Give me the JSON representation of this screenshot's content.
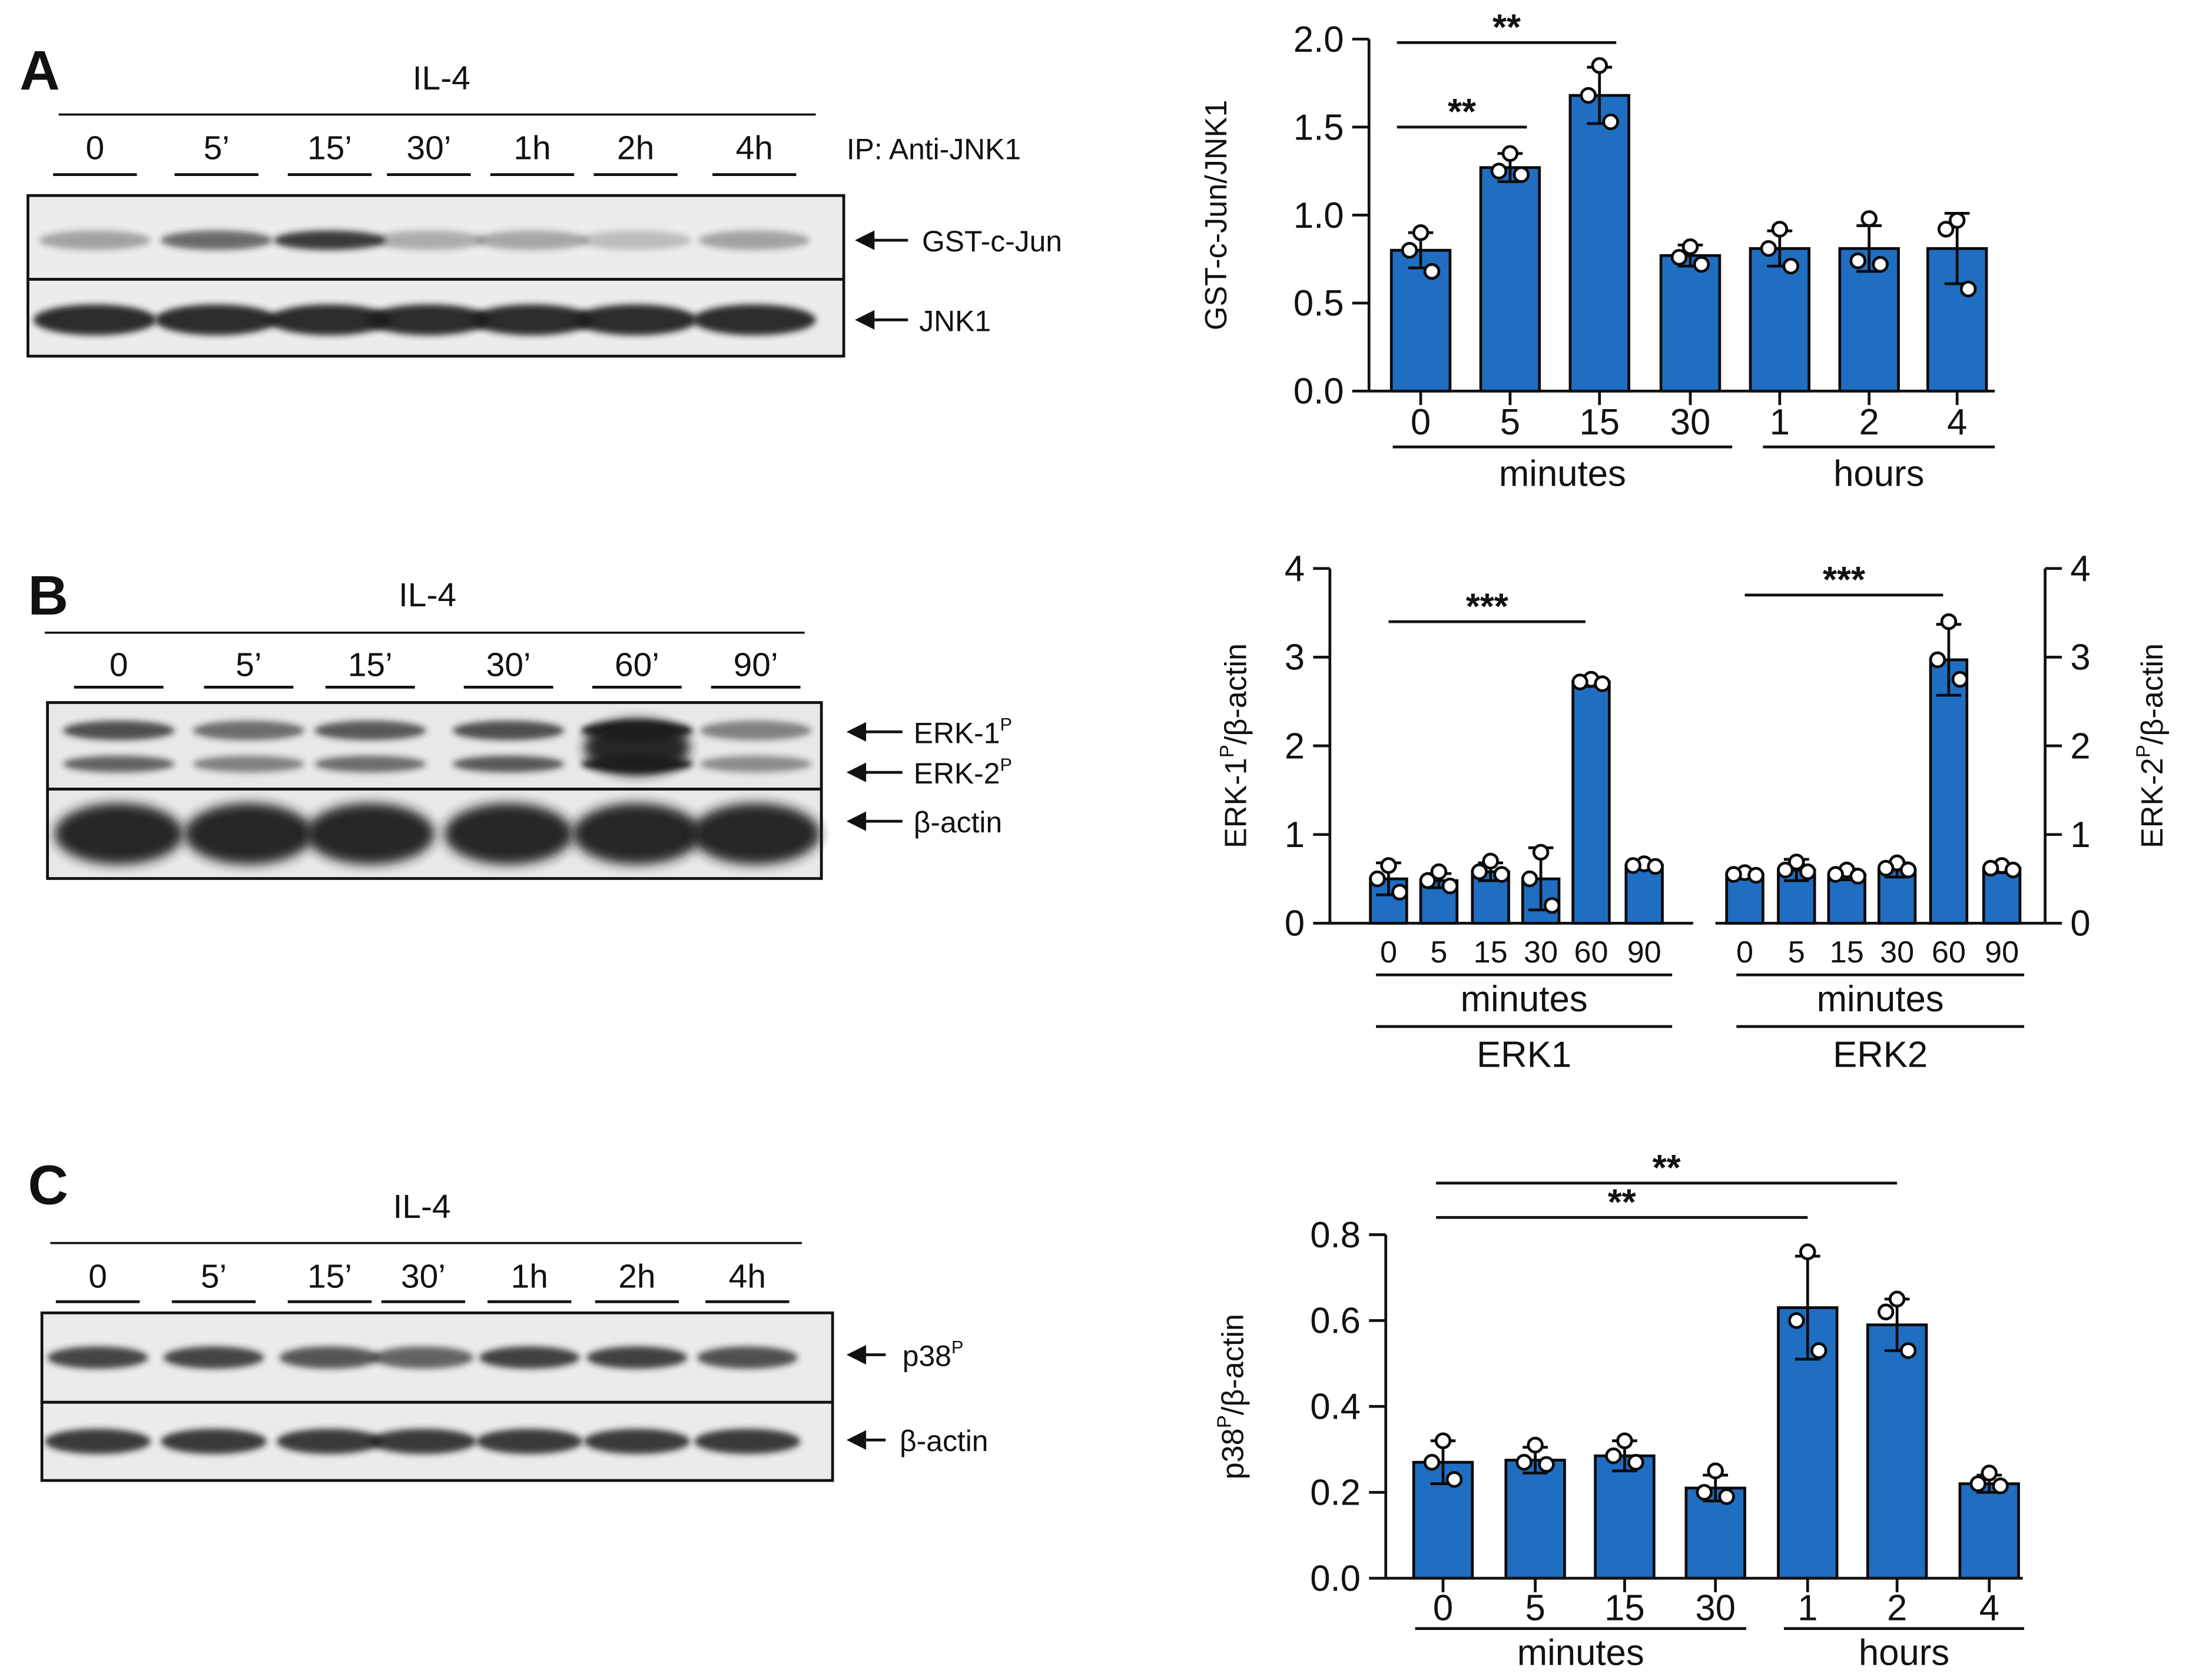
{
  "panels": {
    "A": {
      "letter": "A",
      "blot": {
        "treatment": "IL-4",
        "lanes": [
          "0",
          "5’",
          "15’",
          "30’",
          "1h",
          "2h",
          "4h"
        ],
        "ip_label": "IP: Anti-JNK1",
        "bands": [
          "GST-c-Jun",
          "JNK1"
        ]
      }
    },
    "B": {
      "letter": "B",
      "blot": {
        "treatment": "IL-4",
        "lanes": [
          "0",
          "5’",
          "15’",
          "30’",
          "60’",
          "90’"
        ],
        "bands": [
          {
            "main": "ERK-1",
            "sup": "P"
          },
          {
            "main": "ERK-2",
            "sup": "P"
          },
          {
            "main": "β-actin",
            "sup": ""
          }
        ]
      }
    },
    "C": {
      "letter": "C",
      "blot": {
        "treatment": "IL-4",
        "lanes": [
          "0",
          "5’",
          "15’",
          "30’",
          "1h",
          "2h",
          "4h"
        ],
        "bands": [
          {
            "main": "p38",
            "sup": "P"
          },
          {
            "main": "β-actin",
            "sup": ""
          }
        ]
      }
    }
  },
  "colors": {
    "bar": "#1f6ec2",
    "bar_edge": "#0a0a0a",
    "blot_bg": "#eeeeee",
    "band": "#1a1a1a"
  },
  "chart_data": [
    {
      "id": "A",
      "type": "bar",
      "ylabel": "GST-c-Jun/JNK1",
      "ylim": [
        0,
        2.0
      ],
      "yticks": [
        "0.0",
        "0.5",
        "1.0",
        "1.5",
        "2.0"
      ],
      "categories": [
        "0",
        "5",
        "15",
        "30",
        "1",
        "2",
        "4"
      ],
      "values": [
        0.8,
        1.27,
        1.68,
        0.77,
        0.81,
        0.81,
        0.81
      ],
      "errors": [
        0.1,
        0.08,
        0.16,
        0.06,
        0.1,
        0.13,
        0.2
      ],
      "points": [
        [
          0.9,
          0.8,
          0.68
        ],
        [
          1.35,
          1.25,
          1.23
        ],
        [
          1.85,
          1.68,
          1.53
        ],
        [
          0.82,
          0.76,
          0.72
        ],
        [
          0.92,
          0.81,
          0.71
        ],
        [
          0.98,
          0.74,
          0.72
        ],
        [
          0.97,
          0.92,
          0.58
        ]
      ],
      "groups": [
        {
          "label": "minutes",
          "from": 0,
          "to": 3
        },
        {
          "label": "hours",
          "from": 4,
          "to": 6
        }
      ],
      "significance": [
        {
          "from": 0,
          "to": 1,
          "level": 1.5,
          "label": "**"
        },
        {
          "from": 0,
          "to": 2,
          "level": 1.98,
          "label": "**"
        }
      ]
    },
    {
      "id": "B",
      "type": "bar",
      "ylabel_left": {
        "main": "ERK-1",
        "sup": "P",
        "tail": "/β-actin"
      },
      "ylabel_right": {
        "main": "ERK-2",
        "sup": "P",
        "tail": "/β-actin"
      },
      "ylim": [
        0,
        4
      ],
      "yticks": [
        "0",
        "1",
        "2",
        "3",
        "4"
      ],
      "series": [
        {
          "name": "ERK1",
          "group_label": "minutes",
          "categories": [
            "0",
            "5",
            "15",
            "30",
            "60",
            "90"
          ],
          "values": [
            0.5,
            0.48,
            0.58,
            0.5,
            2.72,
            0.65
          ],
          "errors": [
            0.18,
            0.08,
            0.1,
            0.35,
            0.05,
            0.04
          ],
          "points": [
            [
              0.65,
              0.5,
              0.35
            ],
            [
              0.58,
              0.48,
              0.42
            ],
            [
              0.7,
              0.58,
              0.55
            ],
            [
              0.8,
              0.5,
              0.2
            ],
            [
              2.75,
              2.72,
              2.7
            ],
            [
              0.67,
              0.65,
              0.64
            ]
          ],
          "significance": {
            "from": 0,
            "to": 4,
            "level": 3.4,
            "label": "***"
          }
        },
        {
          "name": "ERK2",
          "group_label": "minutes",
          "categories": [
            "0",
            "5",
            "15",
            "30",
            "60",
            "90"
          ],
          "values": [
            0.55,
            0.6,
            0.55,
            0.6,
            2.97,
            0.62
          ],
          "errors": [
            0.05,
            0.12,
            0.06,
            0.08,
            0.4,
            0.05
          ],
          "points": [
            [
              0.57,
              0.55,
              0.54
            ],
            [
              0.69,
              0.6,
              0.58
            ],
            [
              0.6,
              0.55,
              0.53
            ],
            [
              0.68,
              0.62,
              0.6
            ],
            [
              3.4,
              2.97,
              2.75
            ],
            [
              0.65,
              0.62,
              0.6
            ]
          ],
          "significance": {
            "from": 0,
            "to": 4,
            "level": 3.7,
            "label": "***"
          }
        }
      ]
    },
    {
      "id": "C",
      "type": "bar",
      "ylabel": {
        "main": "p38",
        "sup": "P",
        "tail": "/β-actin"
      },
      "ylim": [
        0,
        0.8
      ],
      "yticks": [
        "0.0",
        "0.2",
        "0.4",
        "0.6",
        "0.8"
      ],
      "categories": [
        "0",
        "5",
        "15",
        "30",
        "1",
        "2",
        "4"
      ],
      "values": [
        0.27,
        0.275,
        0.285,
        0.21,
        0.63,
        0.59,
        0.22
      ],
      "errors": [
        0.05,
        0.03,
        0.035,
        0.03,
        0.12,
        0.06,
        0.02
      ],
      "points": [
        [
          0.32,
          0.27,
          0.23
        ],
        [
          0.31,
          0.27,
          0.265
        ],
        [
          0.32,
          0.285,
          0.27
        ],
        [
          0.25,
          0.2,
          0.19
        ],
        [
          0.76,
          0.6,
          0.53
        ],
        [
          0.65,
          0.62,
          0.53
        ],
        [
          0.245,
          0.22,
          0.215
        ]
      ],
      "groups": [
        {
          "label": "minutes",
          "from": 0,
          "to": 3
        },
        {
          "label": "hours",
          "from": 4,
          "to": 6
        }
      ],
      "significance": [
        {
          "from": 0,
          "to": 4,
          "level": 0.84,
          "label": "**"
        },
        {
          "from": 0,
          "to": 5,
          "level": 0.92,
          "label": "**"
        }
      ]
    }
  ]
}
